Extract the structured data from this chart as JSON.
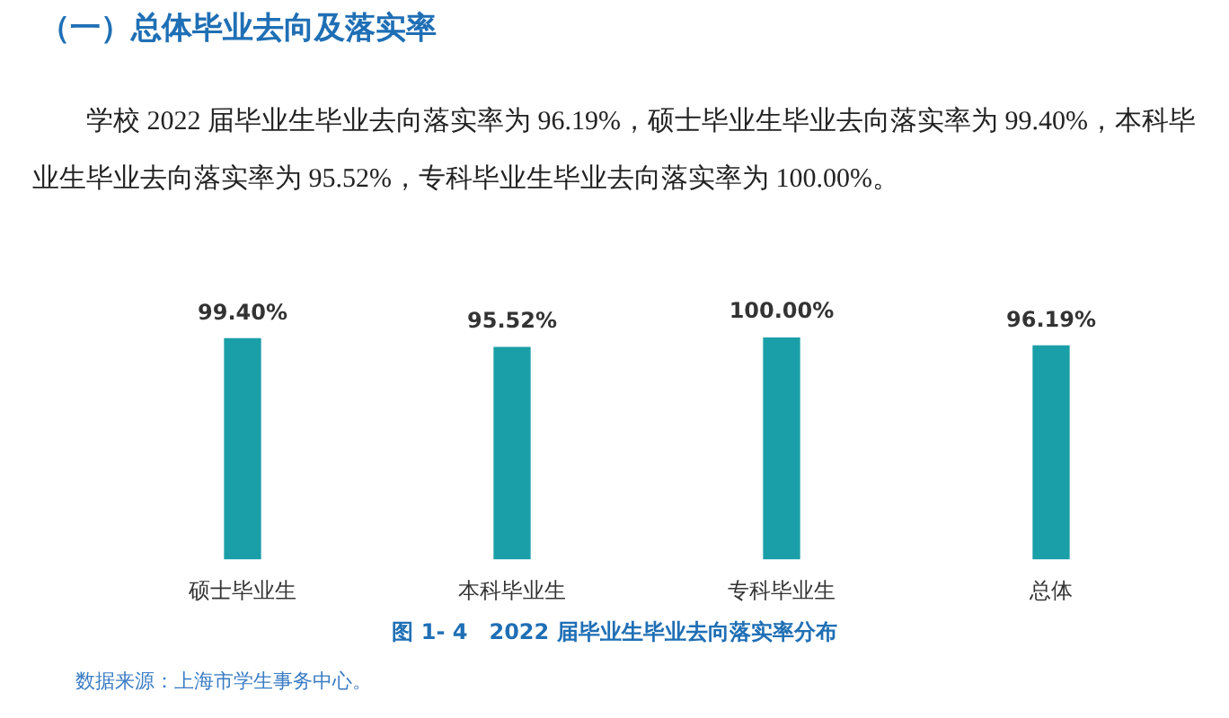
{
  "chart_data": {
    "type": "bar",
    "title": "（一）总体毕业去向及落实率",
    "subtitle": "学校 2022 届毕业生毕业去向落实率为 96.19%，硕士毕业生毕业去向落实率为 99.40%，本科毕业生毕业去向落实率为 95.52%，专科毕业生毕业去向落实率为 100.00%。",
    "categories": [
      "硕士毕业生",
      "本科毕业生",
      "专科毕业生",
      "总体"
    ],
    "values": [
      99.4,
      95.52,
      100.0,
      96.19
    ],
    "value_labels": [
      "99.40%",
      "95.52%",
      "100.00%",
      "96.19%"
    ],
    "color": "#1a9fa8",
    "ylim": [
      0,
      100
    ],
    "annotations": [
      "图 1- 4　2022 届毕业生毕业去向落实率分布",
      "数据来源：上海市学生事务中心。"
    ]
  }
}
